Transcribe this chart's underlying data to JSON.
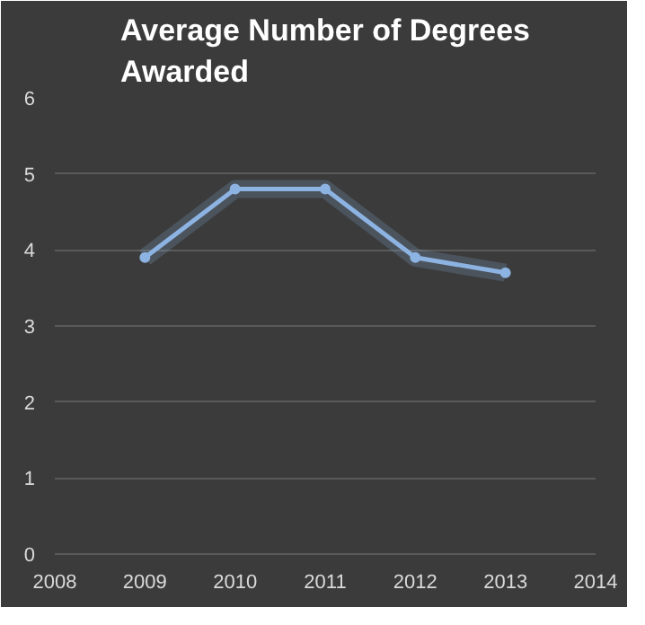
{
  "chart_data": {
    "type": "line",
    "title": "Average Number of Degrees\nAwarded",
    "x": [
      2009,
      2010,
      2011,
      2012,
      2013
    ],
    "series": [
      {
        "color": "#8db3e2",
        "values": [
          3.9,
          4.8,
          4.8,
          3.9,
          3.7
        ]
      }
    ],
    "xlim": [
      2008,
      2014
    ],
    "xticks": [
      2008,
      2009,
      2010,
      2011,
      2012,
      2013,
      2014
    ],
    "ylim": [
      0,
      6
    ],
    "yticks": [
      0,
      1,
      2,
      3,
      4,
      5,
      6
    ],
    "grid": "y",
    "marker": "circle",
    "line_style": "solid"
  }
}
